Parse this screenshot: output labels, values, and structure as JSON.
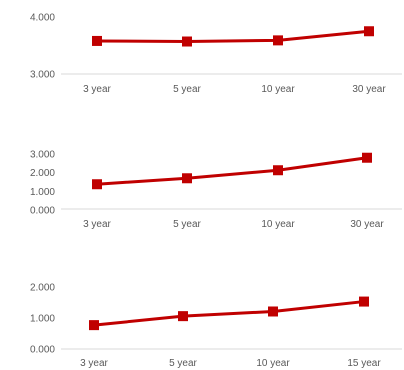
{
  "chart_data": [
    {
      "type": "line",
      "categories": [
        "3 year",
        "5 year",
        "10 year",
        "30 year"
      ],
      "series": [
        {
          "values": [
            3.58,
            3.57,
            3.59,
            3.75
          ],
          "color": "#C00000",
          "marker": "square"
        }
      ],
      "ylim": [
        3.0,
        4.0
      ],
      "yticks": [
        "3.000",
        "4.000"
      ],
      "grid": false,
      "legend": "none"
    },
    {
      "type": "line",
      "categories": [
        "3 year",
        "5 year",
        "10 year",
        "30 year"
      ],
      "series": [
        {
          "values": [
            1.38,
            1.7,
            2.13,
            2.8
          ],
          "color": "#C00000",
          "marker": "square"
        }
      ],
      "ylim": [
        0.0,
        3.0
      ],
      "yticks": [
        "0.000",
        "1.000",
        "2.000",
        "3.000"
      ],
      "grid": false,
      "legend": "none"
    },
    {
      "type": "line",
      "categories": [
        "3 year",
        "5 year",
        "10 year",
        "15 year"
      ],
      "series": [
        {
          "values": [
            0.77,
            1.06,
            1.21,
            1.53
          ],
          "color": "#C00000",
          "marker": "square"
        }
      ],
      "ylim": [
        0.0,
        2.0
      ],
      "yticks": [
        "0.000",
        "1.000",
        "2.000"
      ],
      "grid": false,
      "legend": "none"
    }
  ]
}
